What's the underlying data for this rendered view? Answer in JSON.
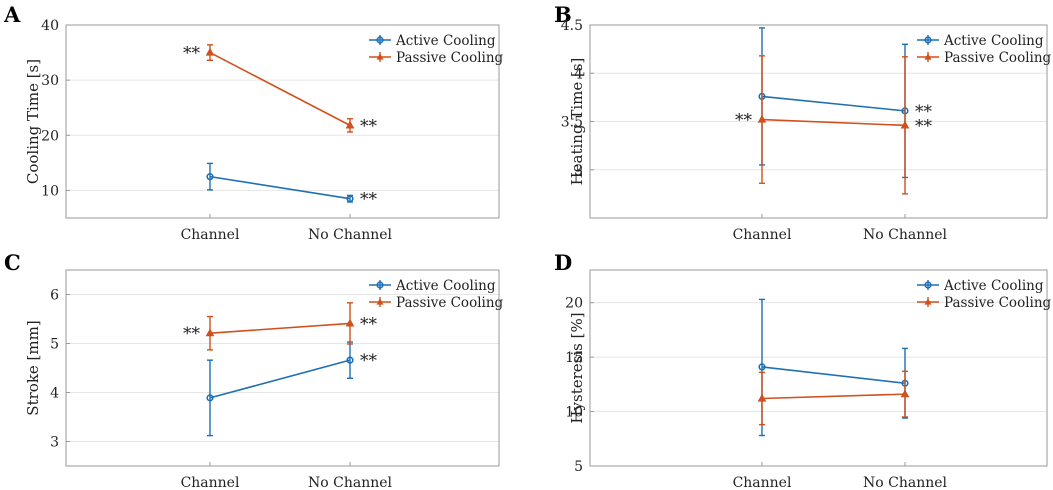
{
  "legend_labels": [
    "Active Cooling",
    "Passive Cooling"
  ],
  "colors": {
    "active": "#1F6FB4",
    "passive": "#D0511D"
  },
  "chart_data": [
    {
      "type": "line",
      "panel_label": "A",
      "ylabel": "Cooling Time [s]",
      "xlabel": "",
      "categories": [
        "Channel",
        "No Channel"
      ],
      "ylim": [
        5,
        40
      ],
      "yticks": [
        10,
        20,
        30,
        40
      ],
      "grid": true,
      "legend": "top-right",
      "series": [
        {
          "name": "Active Cooling",
          "marker": "circle",
          "values": [
            12.5,
            8.5
          ],
          "err_low": [
            10.1,
            7.9
          ],
          "err_high": [
            14.9,
            9.1
          ],
          "annotations": [
            "",
            "**"
          ]
        },
        {
          "name": "Passive Cooling",
          "marker": "triangle",
          "values": [
            35.0,
            21.8
          ],
          "err_low": [
            33.6,
            20.6
          ],
          "err_high": [
            36.4,
            23.0
          ],
          "annotations": [
            "**",
            "**"
          ]
        }
      ]
    },
    {
      "type": "line",
      "panel_label": "B",
      "ylabel": "Heating Time [s]",
      "xlabel": "",
      "categories": [
        "Channel",
        "No Channel"
      ],
      "ylim": [
        2.5,
        4.5
      ],
      "yticks": [
        3,
        3.5,
        4,
        4.5
      ],
      "grid": true,
      "legend": "top-right",
      "series": [
        {
          "name": "Active Cooling",
          "marker": "circle",
          "values": [
            3.76,
            3.61
          ],
          "err_low": [
            3.05,
            2.92
          ],
          "err_high": [
            4.47,
            4.3
          ],
          "annotations": [
            "",
            "**"
          ]
        },
        {
          "name": "Passive Cooling",
          "marker": "triangle",
          "values": [
            3.52,
            3.46
          ],
          "err_low": [
            2.86,
            2.75
          ],
          "err_high": [
            4.18,
            4.17
          ],
          "annotations": [
            "**",
            "**"
          ]
        }
      ]
    },
    {
      "type": "line",
      "panel_label": "C",
      "ylabel": "Stroke [mm]",
      "xlabel": "",
      "categories": [
        "Channel",
        "No Channel"
      ],
      "ylim": [
        2.5,
        6.5
      ],
      "yticks": [
        3,
        4,
        5,
        6
      ],
      "grid": true,
      "legend": "top-right",
      "series": [
        {
          "name": "Active Cooling",
          "marker": "circle",
          "values": [
            3.89,
            4.66
          ],
          "err_low": [
            3.12,
            4.29
          ],
          "err_high": [
            4.66,
            5.03
          ],
          "annotations": [
            "",
            "**"
          ]
        },
        {
          "name": "Passive Cooling",
          "marker": "triangle",
          "values": [
            5.21,
            5.41
          ],
          "err_low": [
            4.87,
            4.99
          ],
          "err_high": [
            5.55,
            5.83
          ],
          "annotations": [
            "**",
            "**"
          ]
        }
      ]
    },
    {
      "type": "line",
      "panel_label": "D",
      "ylabel": "Hysteresis [%]",
      "xlabel": "",
      "categories": [
        "Channel",
        "No Channel"
      ],
      "ylim": [
        5,
        23
      ],
      "yticks": [
        5,
        10,
        15,
        20
      ],
      "grid": true,
      "legend": "top-right",
      "series": [
        {
          "name": "Active Cooling",
          "marker": "circle",
          "values": [
            14.1,
            12.6
          ],
          "err_low": [
            7.8,
            9.4
          ],
          "err_high": [
            20.3,
            15.8
          ],
          "annotations": [
            "",
            ""
          ]
        },
        {
          "name": "Passive Cooling",
          "marker": "triangle",
          "values": [
            11.2,
            11.6
          ],
          "err_low": [
            8.8,
            9.5
          ],
          "err_high": [
            13.6,
            13.7
          ],
          "annotations": [
            "",
            ""
          ]
        }
      ]
    }
  ]
}
